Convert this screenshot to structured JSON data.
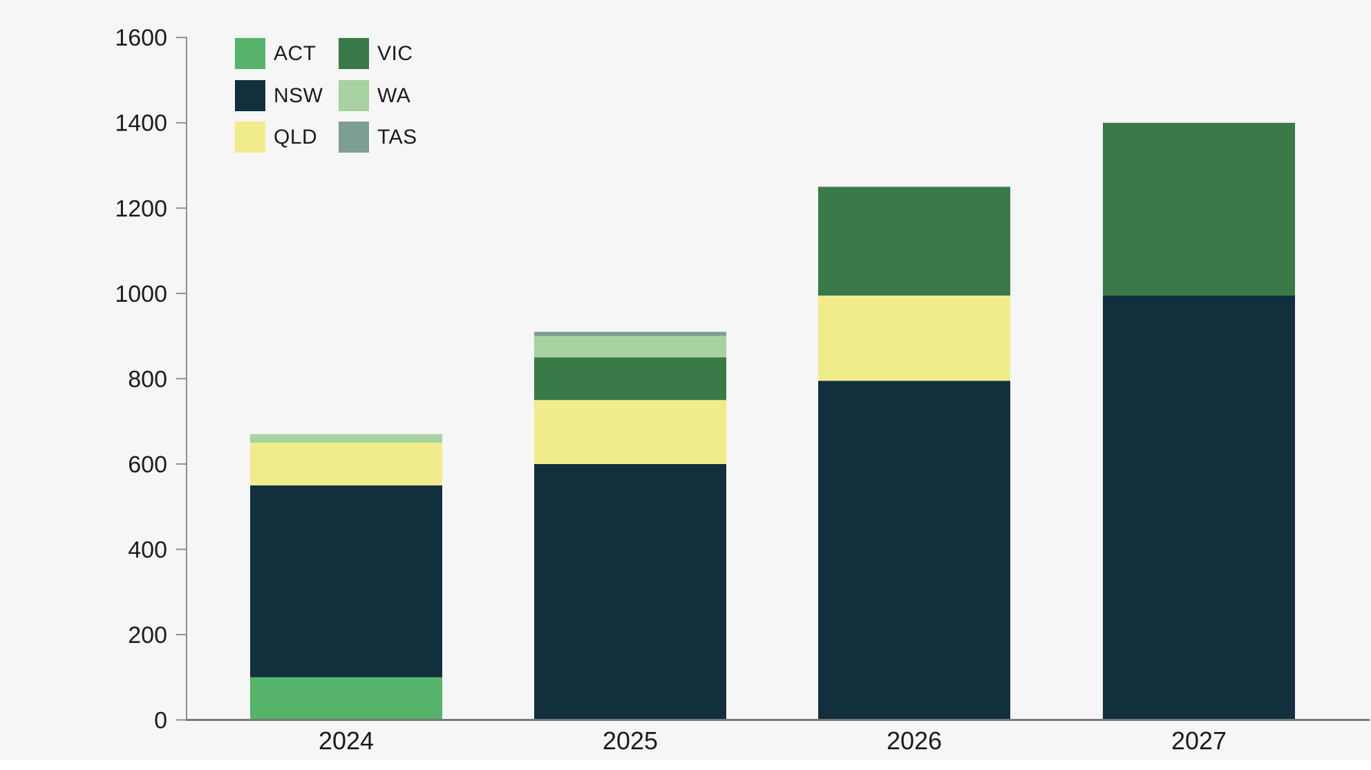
{
  "chart_data": {
    "type": "bar",
    "stacked": true,
    "title": "",
    "xlabel": "",
    "ylabel": "",
    "categories": [
      "2024",
      "2025",
      "2026",
      "2027"
    ],
    "series": [
      {
        "name": "ACT",
        "color": "#55b36a",
        "values": [
          100,
          0,
          0,
          0
        ]
      },
      {
        "name": "NSW",
        "color": "#122f3d",
        "values": [
          450,
          600,
          795,
          995
        ]
      },
      {
        "name": "QLD",
        "color": "#f1ec8b",
        "values": [
          100,
          150,
          200,
          0
        ]
      },
      {
        "name": "VIC",
        "color": "#397a48",
        "values": [
          0,
          100,
          255,
          405
        ]
      },
      {
        "name": "WA",
        "color": "#a8d2a1",
        "values": [
          20,
          50,
          0,
          0
        ]
      },
      {
        "name": "TAS",
        "color": "#7e9e94",
        "values": [
          0,
          10,
          0,
          0
        ]
      }
    ],
    "totals": [
      670,
      910,
      1250,
      1400
    ],
    "ylim": [
      0,
      1600
    ],
    "ytick_step": 200,
    "ytick_labels": [
      "0",
      "200",
      "400",
      "600",
      "800",
      "1000",
      "1200",
      "1400",
      "1600"
    ],
    "grid": false,
    "legend_position": "top-left-inside",
    "legend_columns": [
      [
        "ACT",
        "NSW",
        "QLD"
      ],
      [
        "VIC",
        "WA",
        "TAS"
      ]
    ]
  },
  "colors": {
    "background": "#f5f6f5",
    "axis_line": "#8f8f8f",
    "baseline": "#7a7a7a",
    "tick_text": "#1c1c1c",
    "bottom_strip": "#ffffff"
  }
}
